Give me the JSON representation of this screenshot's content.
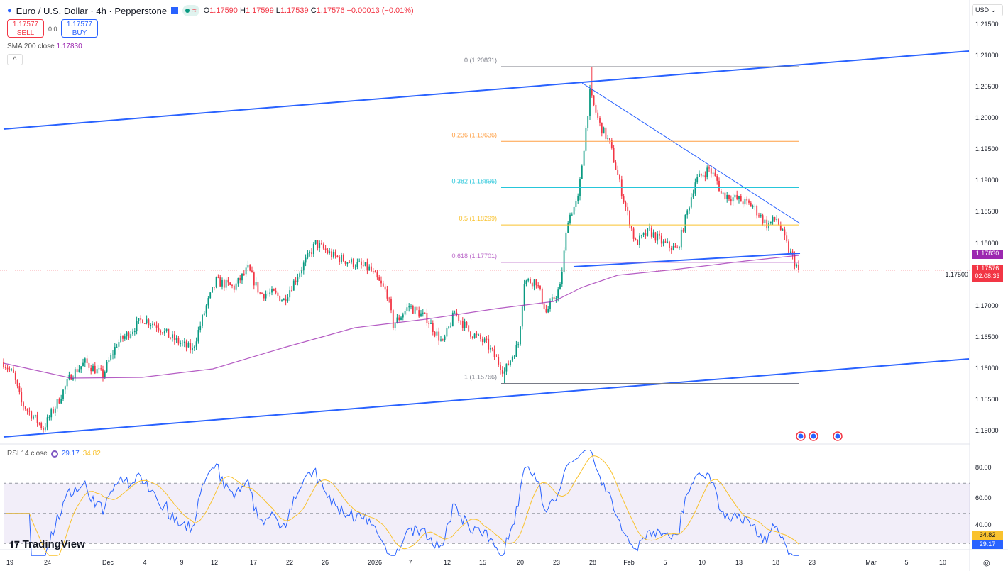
{
  "header": {
    "symbol": "Euro / U.S. Dollar · 4h · Pepperstone",
    "open_label": "O",
    "open": "1.17590",
    "high_label": "H",
    "high": "1.17599",
    "low_label": "L",
    "low": "1.17539",
    "close_label": "C",
    "close": "1.17576",
    "change": "−0.00013 (−0.01%)",
    "approx": "≈"
  },
  "trade": {
    "sell_price": "1.17577",
    "sell_label": "SELL",
    "spread": "0.0",
    "buy_price": "1.17577",
    "buy_label": "BUY"
  },
  "sma": {
    "label": "SMA 200 close",
    "value": "1.17830"
  },
  "collapse_label": "^",
  "currency": "USD",
  "rsi": {
    "label": "RSI 14 close",
    "value": "29.17",
    "ma_value": "34.82",
    "axis": [
      "80.00",
      "60.00",
      "40.00"
    ]
  },
  "price_axis": [
    "1.21500",
    "1.21000",
    "1.20500",
    "1.20000",
    "1.19500",
    "1.19000",
    "1.18500",
    "1.18000",
    "1.17500",
    "1.17000",
    "1.16500",
    "1.16000",
    "1.15500",
    "1.15000"
  ],
  "price_tags": {
    "sma": "1.17830",
    "last": "1.17576",
    "countdown": "02:08:33"
  },
  "time_axis": [
    "19",
    "24",
    "Dec",
    "4",
    "9",
    "12",
    "17",
    "22",
    "26",
    "2026",
    "7",
    "12",
    "15",
    "20",
    "23",
    "28",
    "Feb",
    "5",
    "10",
    "13",
    "18",
    "23",
    "Mar",
    "5",
    "10"
  ],
  "fib": [
    {
      "label": "0 (1.20831)",
      "price": 1.20831,
      "color": "#787b86"
    },
    {
      "label": "0.236 (1.19636)",
      "price": 1.19636,
      "color": "#ff9f43"
    },
    {
      "label": "0.382 (1.18896)",
      "price": 1.18896,
      "color": "#26c6da"
    },
    {
      "label": "0.5 (1.18299)",
      "price": 1.18299,
      "color": "#f9c22e"
    },
    {
      "label": "0.618 (1.17701)",
      "price": 1.17701,
      "color": "#ba68c8"
    },
    {
      "label": "1 (1.15766)",
      "price": 1.15766,
      "color": "#787b86"
    }
  ],
  "logo": "TradingView",
  "colors": {
    "up": "#089981",
    "down": "#f23645",
    "trend": "#2962ff",
    "sma": "#9c27b0",
    "rsi": "#2962ff",
    "rsi_ma": "#f9c22e"
  },
  "chart_data": {
    "type": "candlestick",
    "bars": 401,
    "path": [
      [
        0,
        1.161
      ],
      [
        5,
        1.159
      ],
      [
        9,
        1.1545
      ],
      [
        20,
        1.1505
      ],
      [
        27,
        1.1545
      ],
      [
        34,
        1.159
      ],
      [
        41,
        1.161
      ],
      [
        50,
        1.159
      ],
      [
        57,
        1.164
      ],
      [
        64,
        1.166
      ],
      [
        70,
        1.168
      ],
      [
        77,
        1.167
      ],
      [
        84,
        1.165
      ],
      [
        95,
        1.163
      ],
      [
        102,
        1.17
      ],
      [
        107,
        1.174
      ],
      [
        116,
        1.173
      ],
      [
        123,
        1.176
      ],
      [
        129,
        1.172
      ],
      [
        136,
        1.172
      ],
      [
        141,
        1.171
      ],
      [
        148,
        1.175
      ],
      [
        157,
        1.18
      ],
      [
        166,
        1.178
      ],
      [
        175,
        1.177
      ],
      [
        184,
        1.176
      ],
      [
        193,
        1.172
      ],
      [
        196,
        1.167
      ],
      [
        204,
        1.17
      ],
      [
        213,
        1.168
      ],
      [
        221,
        1.164
      ],
      [
        227,
        1.169
      ],
      [
        234,
        1.166
      ],
      [
        243,
        1.164
      ],
      [
        252,
        1.1595
      ],
      [
        259,
        1.164
      ],
      [
        262,
        1.174
      ],
      [
        268,
        1.174
      ],
      [
        273,
        1.169
      ],
      [
        280,
        1.173
      ],
      [
        284,
        1.184
      ],
      [
        289,
        1.187
      ],
      [
        295,
        1.204
      ],
      [
        300,
        1.199
      ],
      [
        305,
        1.196
      ],
      [
        312,
        1.187
      ],
      [
        318,
        1.18
      ],
      [
        325,
        1.182
      ],
      [
        332,
        1.18
      ],
      [
        339,
        1.179
      ],
      [
        348,
        1.19
      ],
      [
        355,
        1.192
      ],
      [
        359,
        1.19
      ],
      [
        361,
        1.188
      ],
      [
        370,
        1.187
      ],
      [
        377,
        1.186
      ],
      [
        384,
        1.183
      ],
      [
        389,
        1.184
      ],
      [
        395,
        1.179
      ],
      [
        400,
        1.1758
      ]
    ],
    "ylim": [
      1.15,
      1.215
    ],
    "last_close": 1.17576
  }
}
